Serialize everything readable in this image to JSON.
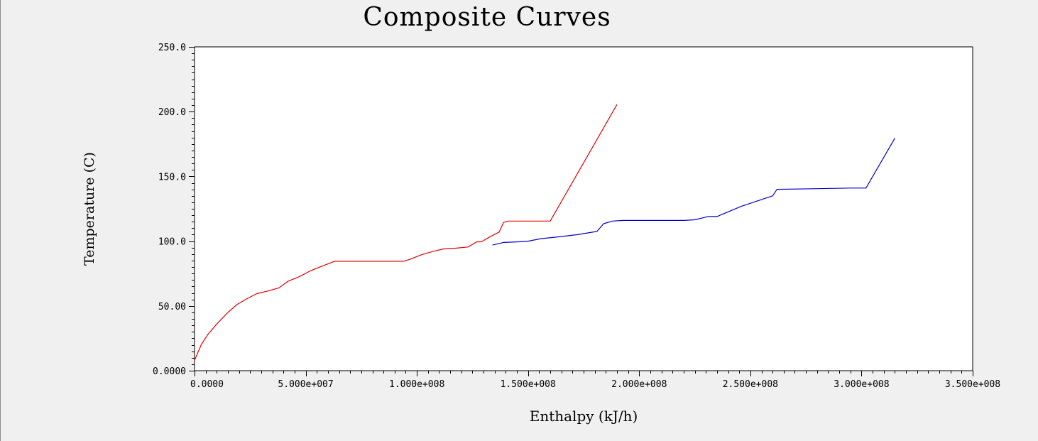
{
  "chart_data": {
    "type": "line",
    "title": "Composite Curves",
    "xlabel": "Enthalpy (kJ/h)",
    "ylabel": "Temperature (C)",
    "xlim": [
      0,
      350000000
    ],
    "ylim": [
      0,
      250
    ],
    "x_ticks": [
      {
        "value": 0,
        "label": "0.0000"
      },
      {
        "value": 50000000,
        "label": "5.000e+007"
      },
      {
        "value": 100000000,
        "label": "1.000e+008"
      },
      {
        "value": 150000000,
        "label": "1.500e+008"
      },
      {
        "value": 200000000,
        "label": "2.000e+008"
      },
      {
        "value": 250000000,
        "label": "2.500e+008"
      },
      {
        "value": 300000000,
        "label": "3.000e+008"
      },
      {
        "value": 350000000,
        "label": "3.500e+008"
      }
    ],
    "y_ticks": [
      {
        "value": 0,
        "label": "0.0000"
      },
      {
        "value": 50,
        "label": "50.00"
      },
      {
        "value": 100,
        "label": "100.0"
      },
      {
        "value": 150,
        "label": "150.0"
      },
      {
        "value": 200,
        "label": "200.0"
      },
      {
        "value": 250,
        "label": "250.0"
      }
    ],
    "grid": false,
    "legend": "none",
    "series": [
      {
        "color": "#e00000",
        "points": [
          [
            0,
            8
          ],
          [
            3000000,
            20
          ],
          [
            6000000,
            28
          ],
          [
            10000000,
            36
          ],
          [
            15000000,
            45
          ],
          [
            19000000,
            51
          ],
          [
            24000000,
            56
          ],
          [
            28000000,
            59.5
          ],
          [
            33000000,
            61.5
          ],
          [
            38000000,
            64
          ],
          [
            42000000,
            69
          ],
          [
            47000000,
            72.5
          ],
          [
            52000000,
            77
          ],
          [
            57000000,
            80.5
          ],
          [
            63000000,
            84.5
          ],
          [
            80000000,
            84.5
          ],
          [
            94000000,
            84.5
          ],
          [
            97000000,
            86
          ],
          [
            102000000,
            89.5
          ],
          [
            107000000,
            92
          ],
          [
            112000000,
            94
          ],
          [
            117000000,
            94.5
          ],
          [
            123000000,
            95.5
          ],
          [
            127000000,
            99.5
          ],
          [
            129000000,
            99.5
          ],
          [
            133000000,
            103.5
          ],
          [
            137000000,
            107
          ],
          [
            139000000,
            114.5
          ],
          [
            141000000,
            115.5
          ],
          [
            160000000,
            115.5
          ],
          [
            190000000,
            205.5
          ]
        ]
      },
      {
        "color": "#0000cc",
        "points": [
          [
            134000000,
            97
          ],
          [
            139000000,
            99
          ],
          [
            146000000,
            99.5
          ],
          [
            150000000,
            100
          ],
          [
            156000000,
            102
          ],
          [
            162000000,
            103
          ],
          [
            172000000,
            105
          ],
          [
            181000000,
            107.5
          ],
          [
            184000000,
            113.5
          ],
          [
            188000000,
            115.5
          ],
          [
            193000000,
            116
          ],
          [
            220000000,
            116
          ],
          [
            225000000,
            116.5
          ],
          [
            231000000,
            119
          ],
          [
            235000000,
            119
          ],
          [
            246000000,
            127
          ],
          [
            260000000,
            135
          ],
          [
            262000000,
            140
          ],
          [
            280000000,
            140.5
          ],
          [
            295000000,
            141
          ],
          [
            302000000,
            141
          ],
          [
            315000000,
            179.5
          ]
        ]
      }
    ]
  }
}
